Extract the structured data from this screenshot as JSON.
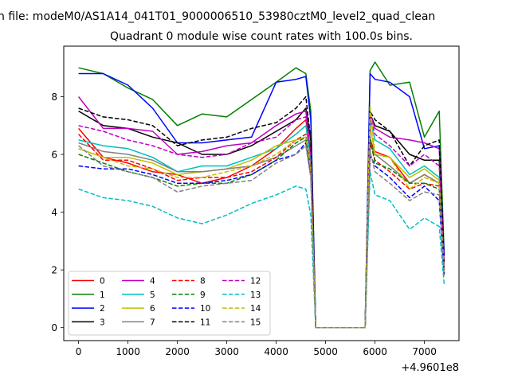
{
  "figure": {
    "suptitle": "n file: modeM0/AS1A14_041T01_9000006510_53980cztM0_level2_quad_clean",
    "title": "Quadrant 0 module wise count rates with 100.0s bins."
  },
  "chart_data": {
    "type": "line",
    "title": "Quadrant 0 module wise count rates with 100.0s bins.",
    "xlabel": "",
    "ylabel": "",
    "x_offset_label": "+4.9601e8",
    "xlim": [
      -300,
      7700
    ],
    "ylim": [
      -0.45,
      9.75
    ],
    "x_ticks": [
      0,
      1000,
      2000,
      3000,
      4000,
      5000,
      6000,
      7000
    ],
    "x_tick_labels": [
      "0",
      "1000",
      "2000",
      "3000",
      "4000",
      "5000",
      "6000",
      "7000"
    ],
    "y_ticks": [
      0,
      2,
      4,
      6,
      8
    ],
    "y_tick_labels": [
      "0",
      "2",
      "4",
      "6",
      "8"
    ],
    "x": [
      0,
      500,
      1000,
      1500,
      2000,
      2500,
      3000,
      3500,
      4000,
      4400,
      4600,
      4700,
      4800,
      4900,
      5500,
      5800,
      5900,
      6000,
      6300,
      6700,
      7000,
      7300,
      7400
    ],
    "series": [
      {
        "name": "0",
        "color": "#ff0000",
        "dash": "solid",
        "values": [
          6.9,
          5.9,
          5.7,
          5.4,
          5.3,
          5.0,
          5.2,
          5.6,
          6.2,
          6.9,
          7.2,
          6.0,
          0.0,
          0.0,
          0.0,
          0.0,
          6.5,
          6.1,
          5.9,
          5.0,
          5.3,
          5.0,
          2.0
        ]
      },
      {
        "name": "1",
        "color": "#008000",
        "dash": "solid",
        "values": [
          9.0,
          8.8,
          8.3,
          7.9,
          7.0,
          7.4,
          7.3,
          7.9,
          8.5,
          9.0,
          8.8,
          7.5,
          0.0,
          0.0,
          0.0,
          0.0,
          8.9,
          9.2,
          8.4,
          8.5,
          6.6,
          7.5,
          2.5
        ]
      },
      {
        "name": "2",
        "color": "#0000ff",
        "dash": "solid",
        "values": [
          8.8,
          8.8,
          8.4,
          7.6,
          6.4,
          6.4,
          6.5,
          6.6,
          8.5,
          8.6,
          8.7,
          7.2,
          0.0,
          0.0,
          0.0,
          0.0,
          8.8,
          8.6,
          8.5,
          8.0,
          6.2,
          6.3,
          2.5
        ]
      },
      {
        "name": "3",
        "color": "#000000",
        "dash": "solid",
        "values": [
          7.5,
          7.0,
          6.9,
          6.6,
          6.4,
          6.0,
          6.0,
          6.3,
          6.8,
          7.2,
          7.6,
          6.5,
          0.0,
          0.0,
          0.0,
          0.0,
          7.4,
          7.0,
          6.8,
          6.0,
          5.8,
          5.8,
          2.0
        ]
      },
      {
        "name": "4",
        "color": "#bf00bf",
        "dash": "solid",
        "values": [
          8.0,
          6.9,
          6.9,
          6.8,
          6.0,
          6.1,
          6.3,
          6.4,
          7.0,
          7.4,
          7.5,
          6.0,
          0.0,
          0.0,
          0.0,
          0.0,
          7.4,
          6.9,
          6.6,
          6.5,
          6.4,
          6.2,
          2.2
        ]
      },
      {
        "name": "5",
        "color": "#00bfbf",
        "dash": "solid",
        "values": [
          6.5,
          6.3,
          6.2,
          5.9,
          5.4,
          5.6,
          5.6,
          5.9,
          6.2,
          6.7,
          7.0,
          5.8,
          0.0,
          0.0,
          0.0,
          0.0,
          7.2,
          6.5,
          6.2,
          5.3,
          5.6,
          5.2,
          2.0
        ]
      },
      {
        "name": "6",
        "color": "#bfbf00",
        "dash": "solid",
        "values": [
          6.2,
          5.9,
          5.9,
          5.7,
          5.3,
          5.4,
          5.5,
          5.8,
          6.3,
          6.5,
          6.6,
          5.5,
          0.0,
          0.0,
          0.0,
          0.0,
          7.0,
          6.0,
          5.9,
          5.2,
          5.5,
          5.1,
          2.0
        ]
      },
      {
        "name": "7",
        "color": "#808080",
        "dash": "solid",
        "values": [
          6.4,
          6.1,
          6.0,
          5.8,
          5.4,
          5.4,
          5.5,
          5.6,
          5.9,
          6.3,
          6.5,
          5.4,
          0.0,
          0.0,
          0.0,
          0.0,
          6.4,
          6.0,
          5.6,
          5.0,
          5.3,
          5.0,
          1.9
        ]
      },
      {
        "name": "8",
        "color": "#ff0000",
        "dash": "dashed",
        "values": [
          6.7,
          5.8,
          5.8,
          5.5,
          5.1,
          5.2,
          5.2,
          5.4,
          5.9,
          6.5,
          6.7,
          5.5,
          0.0,
          0.0,
          0.0,
          0.0,
          6.4,
          5.8,
          5.4,
          4.8,
          5.0,
          4.9,
          1.9
        ]
      },
      {
        "name": "9",
        "color": "#008000",
        "dash": "dashed",
        "values": [
          6.0,
          5.7,
          5.4,
          5.2,
          4.9,
          5.0,
          5.0,
          5.3,
          5.8,
          6.4,
          6.6,
          5.4,
          0.0,
          0.0,
          0.0,
          0.0,
          6.6,
          5.7,
          5.5,
          5.0,
          5.0,
          4.8,
          1.8
        ]
      },
      {
        "name": "10",
        "color": "#0000ff",
        "dash": "dashed",
        "values": [
          5.6,
          5.5,
          5.5,
          5.3,
          5.0,
          5.0,
          5.1,
          5.3,
          5.8,
          6.0,
          6.4,
          5.3,
          0.0,
          0.0,
          0.0,
          0.0,
          6.0,
          5.6,
          5.2,
          4.5,
          4.9,
          4.4,
          1.8
        ]
      },
      {
        "name": "11",
        "color": "#000000",
        "dash": "dashed",
        "values": [
          7.6,
          7.3,
          7.2,
          7.0,
          6.3,
          6.5,
          6.6,
          6.9,
          7.1,
          7.6,
          8.0,
          6.5,
          0.0,
          0.0,
          0.0,
          0.0,
          7.5,
          7.2,
          6.8,
          5.6,
          6.3,
          6.5,
          2.2
        ]
      },
      {
        "name": "12",
        "color": "#bf00bf",
        "dash": "dashed",
        "values": [
          7.0,
          6.8,
          6.5,
          6.3,
          6.0,
          5.9,
          6.0,
          6.4,
          6.6,
          7.2,
          7.3,
          6.0,
          0.0,
          0.0,
          0.0,
          0.0,
          7.3,
          6.7,
          6.3,
          5.6,
          6.0,
          5.6,
          2.0
        ]
      },
      {
        "name": "13",
        "color": "#00bfbf",
        "dash": "dashed",
        "values": [
          4.8,
          4.5,
          4.4,
          4.2,
          3.8,
          3.6,
          3.9,
          4.3,
          4.6,
          4.9,
          4.8,
          3.9,
          0.0,
          0.0,
          0.0,
          0.0,
          5.4,
          4.6,
          4.4,
          3.4,
          3.8,
          3.5,
          1.5
        ]
      },
      {
        "name": "14",
        "color": "#bfbf00",
        "dash": "dashed",
        "values": [
          6.2,
          5.9,
          5.6,
          5.5,
          5.2,
          5.2,
          5.4,
          5.6,
          6.0,
          6.5,
          6.6,
          5.5,
          0.0,
          0.0,
          0.0,
          0.0,
          7.7,
          6.0,
          5.9,
          4.8,
          5.2,
          5.0,
          1.9
        ]
      },
      {
        "name": "15",
        "color": "#808080",
        "dash": "dashed",
        "values": [
          6.3,
          5.6,
          5.4,
          5.2,
          4.7,
          4.9,
          5.0,
          5.1,
          5.7,
          6.0,
          6.3,
          5.2,
          0.0,
          0.0,
          0.0,
          0.0,
          6.1,
          5.4,
          5.0,
          4.4,
          4.7,
          4.6,
          1.8
        ]
      }
    ],
    "legend": {
      "location": "lower-left",
      "columns": 4
    }
  }
}
